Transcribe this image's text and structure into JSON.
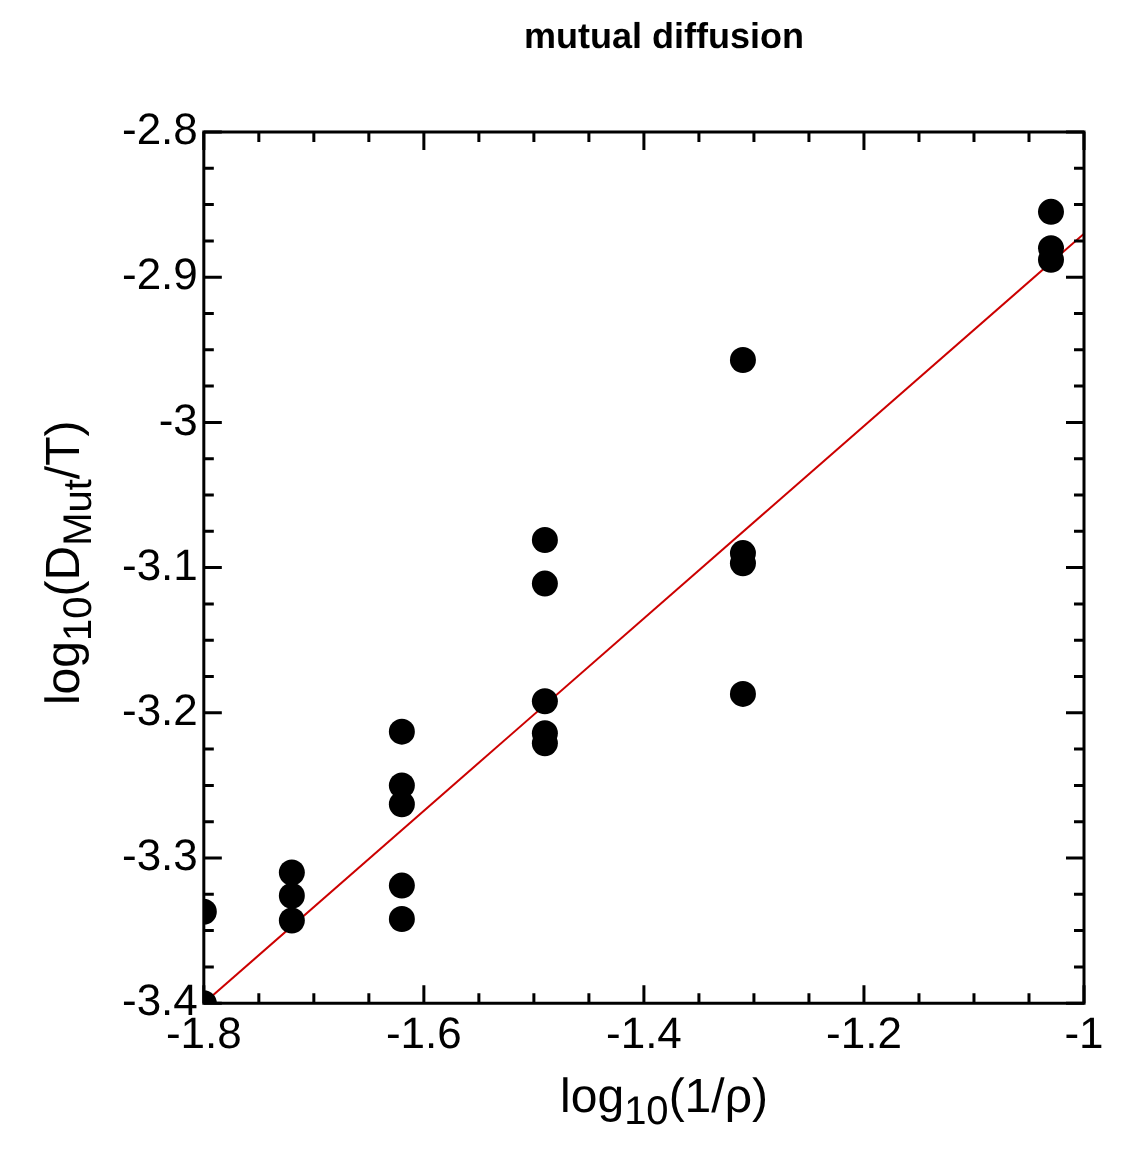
{
  "chart_data": {
    "type": "scatter",
    "title": "mutual diffusion",
    "xlabel": "log$_{10}$(1/ρ)",
    "ylabel": "log$_{10}$(D$_{Mut}$/T)",
    "xlim": [
      -1.8,
      -1
    ],
    "ylim": [
      -3.4,
      -2.8
    ],
    "xticks": [
      -1.8,
      {
        "value": -1.75,
        "label": null
      },
      -1.6,
      {
        "value": -1.55,
        "label": null
      },
      {
        "value": -1.5,
        "label": null
      },
      {
        "value": -1.45,
        "label": null
      },
      -1.4,
      {
        "value": -1.35,
        "label": null
      },
      {
        "value": -1.3,
        "label": null
      },
      {
        "value": -1.25,
        "label": null
      },
      -1.2,
      {
        "value": -1.15,
        "label": null
      },
      {
        "value": -1.1,
        "label": null
      },
      {
        "value": -1.05,
        "label": null
      },
      -1,
      {
        "value": -1.7,
        "label": null
      },
      {
        "value": -1.65,
        "label": null
      }
    ],
    "yticks": [
      -3.4,
      {
        "value": -3.375,
        "label": null
      },
      {
        "value": -3.35,
        "label": null
      },
      {
        "value": -3.325,
        "label": null
      },
      -3.3,
      {
        "value": -3.275,
        "label": null
      },
      {
        "value": -3.25,
        "label": null
      },
      {
        "value": -3.225,
        "label": null
      },
      -3.2,
      {
        "value": -3.175,
        "label": null
      },
      {
        "value": -3.15,
        "label": null
      },
      {
        "value": -3.125,
        "label": null
      },
      -3.1,
      {
        "value": -3.075,
        "label": null
      },
      {
        "value": -3.05,
        "label": null
      },
      {
        "value": -3.025,
        "label": null
      },
      -3,
      {
        "value": -2.975,
        "label": null
      },
      {
        "value": -2.95,
        "label": null
      },
      {
        "value": -2.925,
        "label": null
      },
      -2.9,
      {
        "value": -2.875,
        "label": null
      },
      {
        "value": -2.85,
        "label": null
      },
      {
        "value": -2.825,
        "label": null
      },
      -2.8
    ],
    "grid": false,
    "legend": false,
    "marker": "circle",
    "series": [
      {
        "type": "scatter",
        "color": "#000000",
        "x": [
          -1.8,
          -1.8,
          -1.72,
          -1.72,
          -1.72,
          -1.62,
          -1.62,
          -1.62,
          -1.62,
          -1.62,
          -1.49,
          -1.49,
          -1.49,
          -1.49,
          -1.49,
          -1.31,
          -1.31,
          -1.31,
          -1.31,
          -1.03,
          -1.03,
          -1.03
        ],
        "values": [
          -3.337,
          -3.4,
          -3.31,
          -3.326,
          -3.343,
          -3.213,
          -3.25,
          -3.263,
          -3.319,
          -3.342,
          -3.081,
          -3.111,
          -3.192,
          -3.214,
          -3.221,
          -2.957,
          -3.09,
          -3.097,
          -3.187,
          -2.855,
          -2.88,
          -2.888
        ]
      },
      {
        "type": "line",
        "color": "#cc0000",
        "marker": "none",
        "line_style": "solid",
        "x": [
          -1.8,
          -1
        ],
        "values": [
          -3.4,
          -2.87
        ]
      }
    ]
  }
}
